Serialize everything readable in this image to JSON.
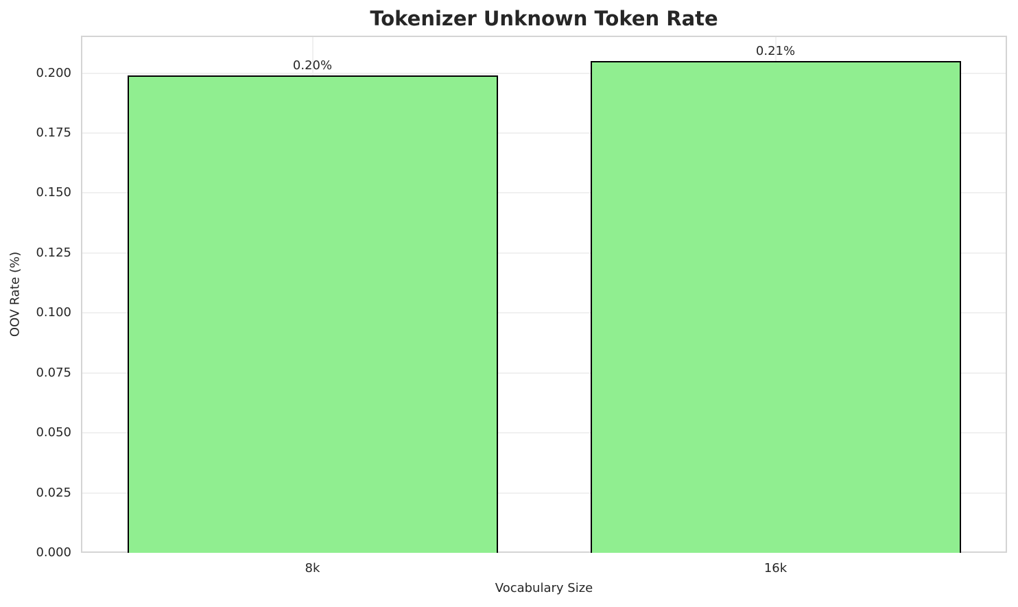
{
  "title": "Tokenizer Unknown Token Rate",
  "chart_data": {
    "type": "bar",
    "title": "Tokenizer Unknown Token Rate",
    "categories": [
      "8k",
      "16k"
    ],
    "values": [
      0.199,
      0.205
    ],
    "bar_labels": [
      "0.20%",
      "0.21%"
    ],
    "xlabel": "Vocabulary Size",
    "ylabel": "OOV Rate (%)",
    "ylim": [
      0,
      0.2156
    ],
    "yticks": [
      0.0,
      0.025,
      0.05,
      0.075,
      0.1,
      0.125,
      0.15,
      0.175,
      0.2
    ],
    "ytick_labels": [
      "0.000",
      "0.025",
      "0.050",
      "0.075",
      "0.100",
      "0.125",
      "0.150",
      "0.175",
      "0.200"
    ],
    "grid": true,
    "legend": "none",
    "bar_width_fraction": 0.8,
    "colors": {
      "bar_fill": "#90EE90",
      "bar_edge": "#000000",
      "grid": "#f0f0f0",
      "spine": "#d4d4d4",
      "text": "#262626"
    }
  }
}
